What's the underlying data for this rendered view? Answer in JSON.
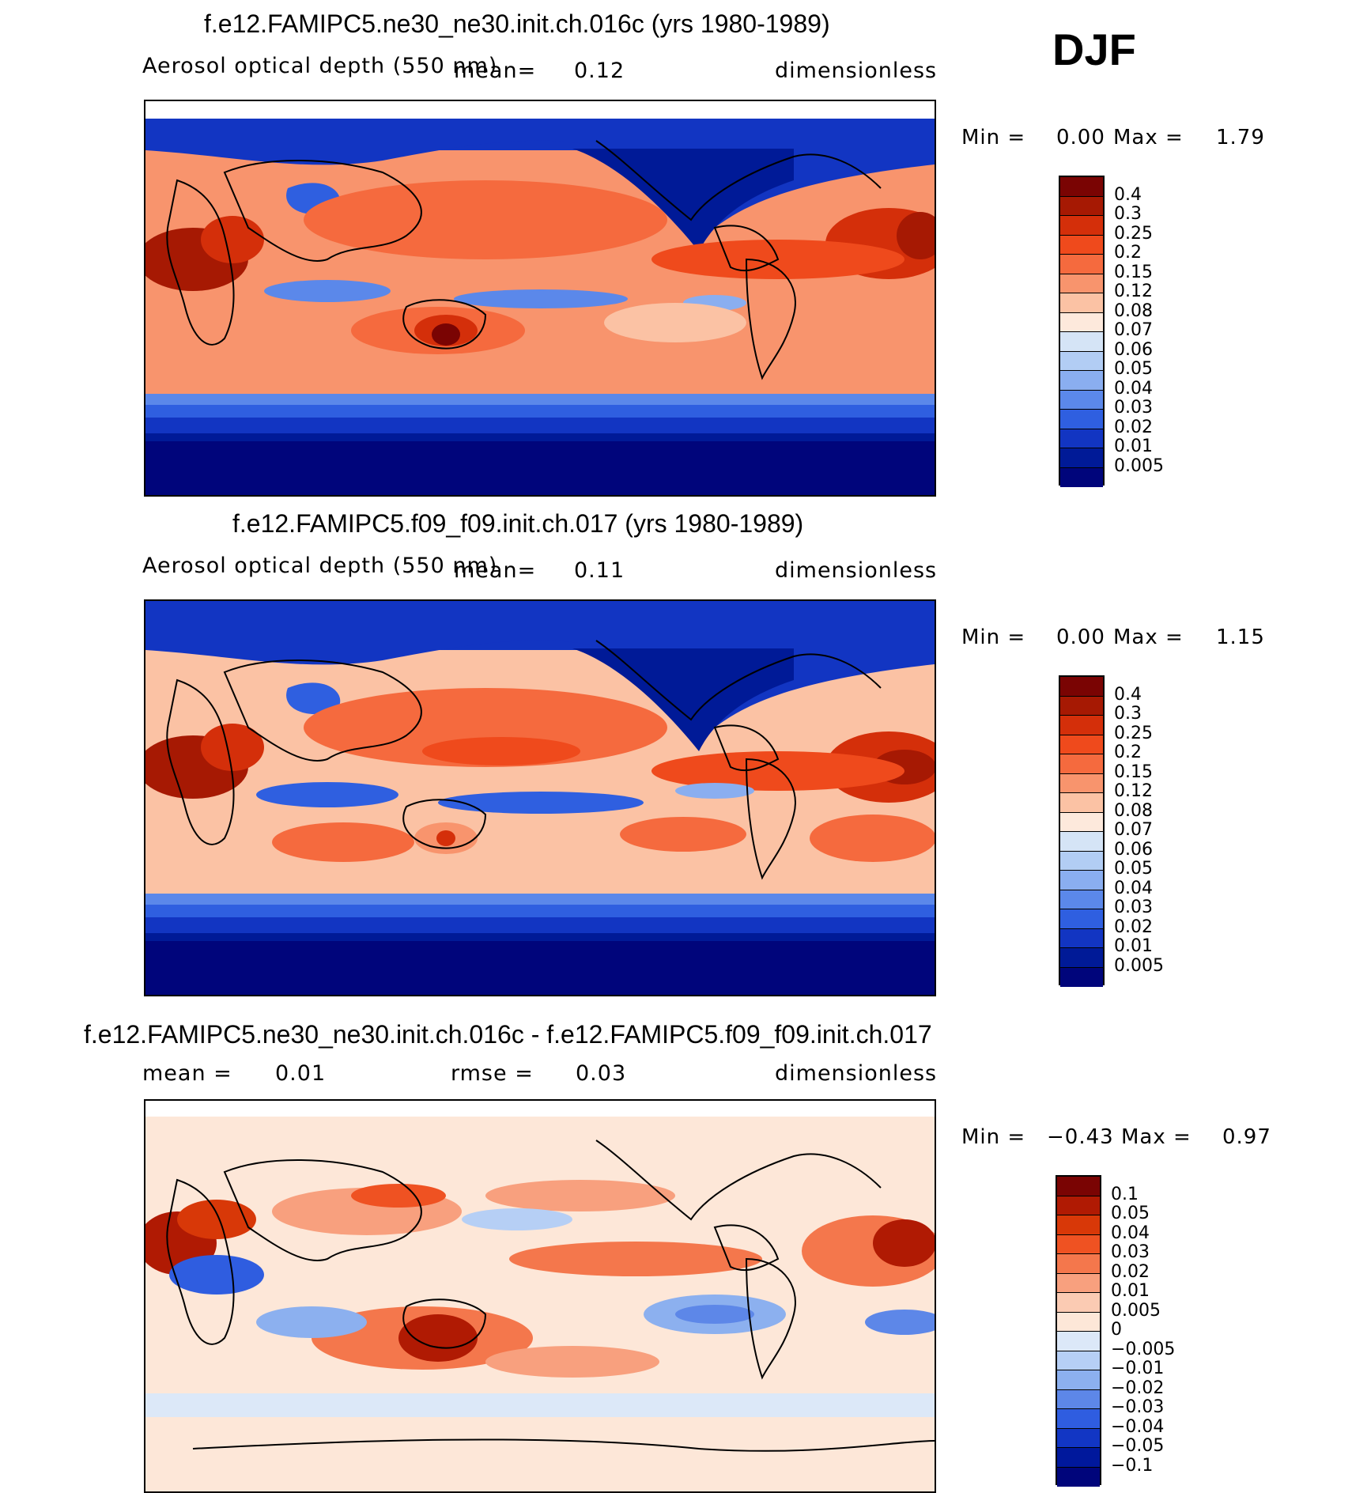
{
  "season": "DJF",
  "panels": [
    {
      "title": "f.e12.FAMIPC5.ne30_ne30.init.ch.016c (yrs 1980-1989)",
      "left_text": "Aerosol optical depth (550 nm)",
      "mid_text": "mean=",
      "mid_value": "0.12",
      "right_text": "dimensionless",
      "min_label": "Min =",
      "min_value": "0.00",
      "max_label": "Max =",
      "max_value": "1.79",
      "levels": [
        "0.4",
        "0.3",
        "0.25",
        "0.2",
        "0.15",
        "0.12",
        "0.08",
        "0.07",
        "0.06",
        "0.05",
        "0.04",
        "0.03",
        "0.02",
        "0.01",
        "0.005"
      ]
    },
    {
      "title": "f.e12.FAMIPC5.f09_f09.init.ch.017 (yrs 1980-1989)",
      "left_text": "Aerosol optical depth (550 nm)",
      "mid_text": "mean=",
      "mid_value": "0.11",
      "right_text": "dimensionless",
      "min_label": "Min =",
      "min_value": "0.00",
      "max_label": "Max =",
      "max_value": "1.15",
      "levels": [
        "0.4",
        "0.3",
        "0.25",
        "0.2",
        "0.15",
        "0.12",
        "0.08",
        "0.07",
        "0.06",
        "0.05",
        "0.04",
        "0.03",
        "0.02",
        "0.01",
        "0.005"
      ]
    },
    {
      "title": "f.e12.FAMIPC5.ne30_ne30.init.ch.016c - f.e12.FAMIPC5.f09_f09.init.ch.017",
      "left_label": "mean =",
      "left_value": "0.01",
      "mid_text": "rmse =",
      "mid_value": "0.03",
      "right_text": "dimensionless",
      "min_label": "Min =",
      "min_value": "−0.43",
      "max_label": "Max =",
      "max_value": "0.97",
      "levels": [
        "0.1",
        "0.05",
        "0.04",
        "0.03",
        "0.02",
        "0.01",
        "0.005",
        "0",
        "−0.005",
        "−0.01",
        "−0.02",
        "−0.03",
        "−0.04",
        "−0.05",
        "−0.1"
      ]
    }
  ],
  "colors": {
    "abs_scale": [
      "#7a0403",
      "#a61903",
      "#d42f0a",
      "#ef4a1c",
      "#f56a3e",
      "#f8946d",
      "#fbc2a4",
      "#fde9dc",
      "#d5e4f6",
      "#b2cdf4",
      "#8aaef0",
      "#5b88ea",
      "#2f5fe0",
      "#1235c2",
      "#001a97",
      "#00057b"
    ],
    "diff_scale": [
      "#7a0403",
      "#b01a03",
      "#d83808",
      "#ef5222",
      "#f4774c",
      "#f8a07e",
      "#fbcbb3",
      "#fde7d8",
      "#dce8f8",
      "#b6cff5",
      "#8cb0ef",
      "#5d87e8",
      "#2f5de0",
      "#1236c4",
      "#00189c",
      "#00057b"
    ]
  }
}
